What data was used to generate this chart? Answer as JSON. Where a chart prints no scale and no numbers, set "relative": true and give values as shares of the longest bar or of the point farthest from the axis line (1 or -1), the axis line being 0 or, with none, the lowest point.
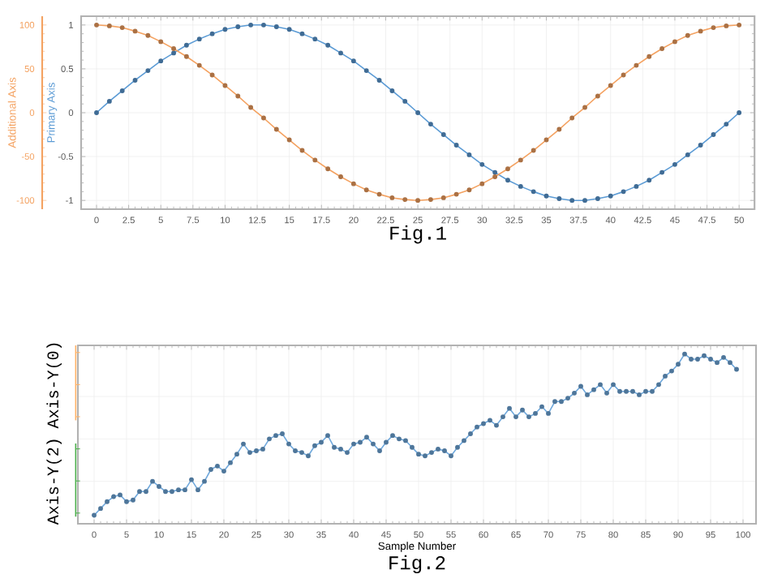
{
  "chart_data": [
    {
      "type": "line",
      "title": "Fig.1",
      "ylabel": "Primary Axis",
      "y2label": "Additional Axis",
      "marker": "circle",
      "grid": true,
      "x": [
        0,
        1,
        2,
        3,
        4,
        5,
        6,
        7,
        8,
        9,
        10,
        11,
        12,
        13,
        14,
        15,
        16,
        17,
        18,
        19,
        20,
        21,
        22,
        23,
        24,
        25,
        26,
        27,
        28,
        29,
        30,
        31,
        32,
        33,
        34,
        35,
        36,
        37,
        38,
        39,
        40,
        41,
        42,
        43,
        44,
        45,
        46,
        47,
        48,
        49,
        50
      ],
      "xlim": [
        -1.2,
        51.2
      ],
      "xticks": [
        0,
        2.5,
        5,
        7.5,
        10,
        12.5,
        15,
        17.5,
        20,
        22.5,
        25,
        27.5,
        30,
        32.5,
        35,
        37.5,
        40,
        42.5,
        45,
        47.5,
        50
      ],
      "ylim": [
        -1.1,
        1.1
      ],
      "yticks": [
        -1,
        -0.5,
        0,
        0.5,
        1
      ],
      "y2lim": [
        -110,
        110
      ],
      "y2ticks": [
        -100,
        -50,
        0,
        50,
        100
      ],
      "series": [
        {
          "color": "#5b9bd5",
          "values": [
            0,
            0.13,
            0.25,
            0.37,
            0.48,
            0.59,
            0.68,
            0.77,
            0.84,
            0.9,
            0.95,
            0.98,
            1.0,
            1.0,
            0.98,
            0.95,
            0.9,
            0.84,
            0.77,
            0.68,
            0.59,
            0.48,
            0.37,
            0.25,
            0.13,
            0,
            -0.13,
            -0.25,
            -0.37,
            -0.48,
            -0.59,
            -0.68,
            -0.77,
            -0.84,
            -0.9,
            -0.95,
            -0.98,
            -1.0,
            -1.0,
            -0.98,
            -0.95,
            -0.9,
            -0.84,
            -0.77,
            -0.68,
            -0.59,
            -0.48,
            -0.37,
            -0.25,
            -0.13,
            0
          ]
        },
        {
          "color": "#f4a261",
          "axis": "y2",
          "values": [
            100,
            99,
            97,
            93,
            88,
            81,
            73,
            64,
            54,
            43,
            31,
            19,
            6,
            -6,
            -19,
            -31,
            -43,
            -54,
            -64,
            -73,
            -81,
            -88,
            -93,
            -97,
            -99,
            -100,
            -99,
            -97,
            -93,
            -88,
            -81,
            -73,
            -64,
            -54,
            -43,
            -31,
            -19,
            -6,
            6,
            19,
            31,
            43,
            54,
            64,
            73,
            81,
            88,
            93,
            97,
            99,
            100
          ]
        }
      ]
    },
    {
      "type": "line",
      "title": "Fig.2",
      "xlabel": "Sample Number",
      "ylabel": "Axis-Y(2)",
      "y2label": "Axis-Y(0)",
      "marker": "circle",
      "grid": true,
      "relative": true,
      "tick_labels": "x",
      "x": [
        0,
        1,
        2,
        3,
        4,
        5,
        6,
        7,
        8,
        9,
        10,
        11,
        12,
        13,
        14,
        15,
        16,
        17,
        18,
        19,
        20,
        21,
        22,
        23,
        24,
        25,
        26,
        27,
        28,
        29,
        30,
        31,
        32,
        33,
        34,
        35,
        36,
        37,
        38,
        39,
        40,
        41,
        42,
        43,
        44,
        45,
        46,
        47,
        48,
        49,
        50,
        51,
        52,
        53,
        54,
        55,
        56,
        57,
        58,
        59,
        60,
        61,
        62,
        63,
        64,
        65,
        66,
        67,
        68,
        69,
        70,
        71,
        72,
        73,
        74,
        75,
        76,
        77,
        78,
        79,
        80,
        81,
        82,
        83,
        84,
        85,
        86,
        87,
        88,
        89,
        90,
        91,
        92,
        93,
        94,
        95,
        96,
        97,
        98,
        99
      ],
      "xlim": [
        -2.5,
        102
      ],
      "xticks": [
        0,
        5,
        10,
        15,
        20,
        25,
        30,
        35,
        40,
        45,
        50,
        55,
        60,
        65,
        70,
        75,
        80,
        85,
        90,
        95,
        100
      ],
      "series": [
        {
          "color": "#6fa8dc",
          "values": [
            0.05,
            0.09,
            0.13,
            0.16,
            0.17,
            0.13,
            0.14,
            0.19,
            0.19,
            0.25,
            0.22,
            0.19,
            0.19,
            0.2,
            0.2,
            0.26,
            0.2,
            0.25,
            0.32,
            0.34,
            0.31,
            0.36,
            0.41,
            0.47,
            0.42,
            0.43,
            0.44,
            0.5,
            0.52,
            0.53,
            0.47,
            0.43,
            0.42,
            0.4,
            0.46,
            0.48,
            0.52,
            0.45,
            0.44,
            0.42,
            0.47,
            0.48,
            0.51,
            0.47,
            0.43,
            0.48,
            0.52,
            0.5,
            0.49,
            0.45,
            0.41,
            0.4,
            0.42,
            0.44,
            0.43,
            0.4,
            0.45,
            0.49,
            0.53,
            0.57,
            0.59,
            0.61,
            0.58,
            0.63,
            0.68,
            0.63,
            0.67,
            0.63,
            0.65,
            0.69,
            0.65,
            0.72,
            0.72,
            0.74,
            0.77,
            0.81,
            0.76,
            0.79,
            0.82,
            0.77,
            0.82,
            0.78,
            0.78,
            0.78,
            0.76,
            0.78,
            0.78,
            0.82,
            0.87,
            0.9,
            0.94,
            1,
            0.97,
            0.97,
            0.99,
            0.97,
            0.95,
            0.98,
            0.95,
            0.91
          ]
        }
      ]
    }
  ]
}
